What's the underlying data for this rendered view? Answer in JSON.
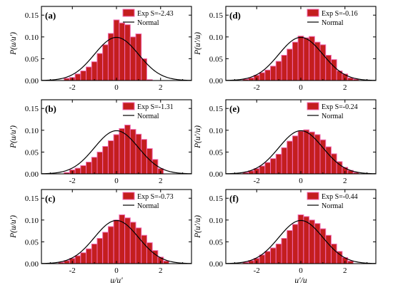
{
  "chart_data": [
    {
      "type": "bar",
      "panel_label": "(a)",
      "ylabel": "P(u/u')",
      "xlabel": "",
      "xlim": [
        -3.4,
        3.4
      ],
      "ylim": [
        0,
        0.17
      ],
      "xticks": [
        "-2",
        "0",
        "2"
      ],
      "yticks": [
        "0.00",
        "0.05",
        "0.10",
        "0.15"
      ],
      "legend": {
        "bar_label": "Exp S=-2.43",
        "line_label": "Normal",
        "placement": "top-right"
      },
      "bins": {
        "centers": [
          -2.25,
          -2.0,
          -1.75,
          -1.5,
          -1.25,
          -1.0,
          -0.75,
          -0.5,
          -0.25,
          0.0,
          0.25,
          0.5,
          0.75,
          1.0,
          1.25,
          1.5
        ],
        "values": [
          0.005,
          0.007,
          0.015,
          0.022,
          0.031,
          0.043,
          0.062,
          0.082,
          0.108,
          0.139,
          0.132,
          0.128,
          0.1,
          0.107,
          0.05,
          0.002
        ]
      },
      "normal": {
        "mean": 0,
        "std": 1,
        "peak": 0.099
      }
    },
    {
      "type": "bar",
      "panel_label": "(d)",
      "ylabel": "P(u'/u)",
      "xlabel": "",
      "xlim": [
        -3.4,
        3.4
      ],
      "ylim": [
        0,
        0.17
      ],
      "xticks": [
        "-2",
        "0",
        "2"
      ],
      "yticks": [
        "0.00",
        "0.05",
        "0.10",
        "0.15"
      ],
      "legend": {
        "bar_label": "Exp S=-0.16",
        "line_label": "Normal",
        "placement": "top-right"
      },
      "bins": {
        "centers": [
          -2.5,
          -2.25,
          -2.0,
          -1.75,
          -1.5,
          -1.25,
          -1.0,
          -0.75,
          -0.5,
          -0.25,
          0.0,
          0.25,
          0.5,
          0.75,
          1.0,
          1.25,
          1.5,
          1.75,
          2.0,
          2.25,
          2.5
        ],
        "values": [
          0.003,
          0.006,
          0.012,
          0.018,
          0.024,
          0.033,
          0.044,
          0.058,
          0.072,
          0.088,
          0.102,
          0.098,
          0.101,
          0.088,
          0.082,
          0.058,
          0.048,
          0.022,
          0.015,
          0.006,
          0.003
        ]
      },
      "normal": {
        "mean": 0,
        "std": 1,
        "peak": 0.099
      }
    },
    {
      "type": "bar",
      "panel_label": "(b)",
      "ylabel": "P(u/u')",
      "xlabel": "",
      "xlim": [
        -3.4,
        3.4
      ],
      "ylim": [
        0,
        0.17
      ],
      "xticks": [
        "-2",
        "0",
        "2"
      ],
      "yticks": [
        "0.00",
        "0.05",
        "0.10",
        "0.15"
      ],
      "legend": {
        "bar_label": "Exp S=-1.31",
        "line_label": "Normal",
        "placement": "top-right"
      },
      "bins": {
        "centers": [
          -2.25,
          -2.0,
          -1.75,
          -1.5,
          -1.25,
          -1.0,
          -0.75,
          -0.5,
          -0.25,
          0.0,
          0.25,
          0.5,
          0.75,
          1.0,
          1.25,
          1.5,
          1.75,
          2.0
        ],
        "values": [
          0.003,
          0.009,
          0.013,
          0.019,
          0.027,
          0.038,
          0.05,
          0.063,
          0.076,
          0.09,
          0.104,
          0.112,
          0.102,
          0.091,
          0.079,
          0.058,
          0.033,
          0.012
        ]
      },
      "normal": {
        "mean": 0,
        "std": 1,
        "peak": 0.099
      }
    },
    {
      "type": "bar",
      "panel_label": "(e)",
      "ylabel": "P(u'/u)",
      "xlabel": "",
      "xlim": [
        -3.4,
        3.4
      ],
      "ylim": [
        0,
        0.17
      ],
      "xticks": [
        "-2",
        "0",
        "2"
      ],
      "yticks": [
        "0.00",
        "0.05",
        "0.10",
        "0.15"
      ],
      "legend": {
        "bar_label": "Exp S=-0.24",
        "line_label": "Normal",
        "placement": "top-right"
      },
      "bins": {
        "centers": [
          -2.5,
          -2.25,
          -2.0,
          -1.75,
          -1.5,
          -1.25,
          -1.0,
          -0.75,
          -0.5,
          -0.25,
          0.0,
          0.25,
          0.5,
          0.75,
          1.0,
          1.25,
          1.5,
          1.75,
          2.0,
          2.25,
          2.5
        ],
        "values": [
          0.003,
          0.007,
          0.012,
          0.018,
          0.026,
          0.035,
          0.045,
          0.06,
          0.075,
          0.087,
          0.098,
          0.101,
          0.096,
          0.09,
          0.078,
          0.062,
          0.046,
          0.028,
          0.015,
          0.008,
          0.003
        ]
      },
      "normal": {
        "mean": 0,
        "std": 1,
        "peak": 0.099
      }
    },
    {
      "type": "bar",
      "panel_label": "(c)",
      "ylabel": "P(u/u')",
      "xlabel": "u/u'",
      "xlim": [
        -3.4,
        3.4
      ],
      "ylim": [
        0,
        0.17
      ],
      "xticks": [
        "-2",
        "0",
        "2"
      ],
      "yticks": [
        "0.00",
        "0.05",
        "0.10",
        "0.15"
      ],
      "legend": {
        "bar_label": "Exp S=-0.73",
        "line_label": "Normal",
        "placement": "top-right"
      },
      "bins": {
        "centers": [
          -2.5,
          -2.25,
          -2.0,
          -1.75,
          -1.5,
          -1.25,
          -1.0,
          -0.75,
          -0.5,
          -0.25,
          0.0,
          0.25,
          0.5,
          0.75,
          1.0,
          1.25,
          1.5,
          1.75,
          2.0,
          2.25
        ],
        "values": [
          0.003,
          0.007,
          0.012,
          0.018,
          0.025,
          0.034,
          0.045,
          0.058,
          0.072,
          0.085,
          0.1,
          0.112,
          0.105,
          0.095,
          0.082,
          0.065,
          0.048,
          0.03,
          0.015,
          0.006
        ]
      },
      "normal": {
        "mean": 0,
        "std": 1,
        "peak": 0.099
      }
    },
    {
      "type": "bar",
      "panel_label": "(f)",
      "ylabel": "P(u'/u)",
      "xlabel": "u'/u",
      "xlim": [
        -3.4,
        3.4
      ],
      "ylim": [
        0,
        0.17
      ],
      "xticks": [
        "-2",
        "0",
        "2"
      ],
      "yticks": [
        "0.00",
        "0.05",
        "0.10",
        "0.15"
      ],
      "legend": {
        "bar_label": "Exp S=-0.44",
        "line_label": "Normal",
        "placement": "top-right"
      },
      "bins": {
        "centers": [
          -2.5,
          -2.25,
          -2.0,
          -1.75,
          -1.5,
          -1.25,
          -1.0,
          -0.75,
          -0.5,
          -0.25,
          0.0,
          0.25,
          0.5,
          0.75,
          1.0,
          1.25,
          1.5,
          1.75,
          2.0,
          2.25
        ],
        "values": [
          0.003,
          0.007,
          0.012,
          0.02,
          0.028,
          0.036,
          0.045,
          0.058,
          0.076,
          0.09,
          0.112,
          0.108,
          0.1,
          0.092,
          0.08,
          0.065,
          0.045,
          0.028,
          0.014,
          0.006
        ]
      },
      "normal": {
        "mean": 0,
        "std": 1,
        "peak": 0.099
      }
    }
  ],
  "colors": {
    "bar_fill": "#c41e1e",
    "bar_edge": "#f06bb4",
    "normal_line": "#000000",
    "axis": "#000000",
    "background": "#ffffff"
  }
}
